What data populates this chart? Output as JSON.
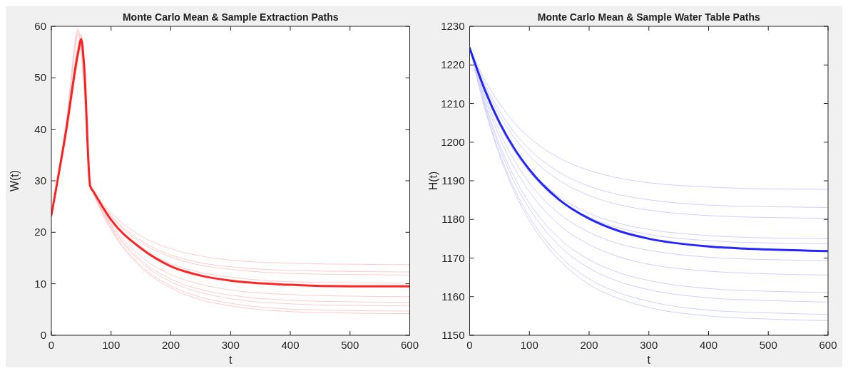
{
  "chart_data": [
    {
      "type": "line",
      "title": "Monte Carlo Mean & Sample Extraction Paths",
      "xlabel": "t",
      "ylabel": "W(t)",
      "xlim": [
        0,
        600
      ],
      "ylim": [
        0,
        60
      ],
      "xticks": [
        0,
        100,
        200,
        300,
        400,
        500,
        600
      ],
      "yticks": [
        0,
        10,
        20,
        30,
        40,
        50,
        60
      ],
      "series": [
        {
          "color": "#ffcccc",
          "x": [
            0,
            25,
            45,
            50,
            55,
            65,
            70,
            100,
            150,
            200,
            250,
            300,
            400,
            500,
            600
          ],
          "values": [
            23.3,
            40.5,
            59.5,
            56,
            50,
            29,
            28.1,
            23.8,
            19.3,
            16.8,
            15.4,
            14.6,
            14.0,
            13.8,
            13.7
          ]
        },
        {
          "color": "#ffcccc",
          "x": [
            0,
            25,
            45,
            50,
            55,
            65,
            70,
            100,
            150,
            200,
            250,
            300,
            400,
            500,
            600
          ],
          "values": [
            23.3,
            39.5,
            56,
            57,
            52,
            29,
            28.0,
            23.3,
            18.4,
            15.6,
            14.1,
            13.3,
            12.6,
            12.4,
            12.3
          ]
        },
        {
          "color": "#ffcccc",
          "x": [
            0,
            25,
            45,
            50,
            55,
            65,
            70,
            100,
            150,
            200,
            250,
            300,
            400,
            500,
            600
          ],
          "values": [
            23.3,
            41,
            58.5,
            55,
            48,
            29,
            28.0,
            23.1,
            18.0,
            15.2,
            13.6,
            12.8,
            12.0,
            11.8,
            11.7
          ]
        },
        {
          "color": "#ffcccc",
          "x": [
            0,
            25,
            45,
            50,
            55,
            65,
            70,
            100,
            150,
            200,
            250,
            300,
            400,
            500,
            600
          ],
          "values": [
            23.3,
            40,
            55,
            58,
            53,
            29,
            27.9,
            22.6,
            17.0,
            13.9,
            12.2,
            11.3,
            10.4,
            10.2,
            10.1
          ]
        },
        {
          "color": "#ffcccc",
          "x": [
            0,
            25,
            45,
            50,
            55,
            65,
            70,
            100,
            150,
            200,
            250,
            300,
            400,
            500,
            600
          ],
          "values": [
            23.3,
            39,
            54,
            57.5,
            54,
            29,
            27.8,
            21.7,
            15.3,
            11.8,
            9.9,
            8.8,
            7.9,
            7.6,
            7.5
          ]
        },
        {
          "color": "#ffcccc",
          "x": [
            0,
            25,
            45,
            50,
            55,
            65,
            70,
            100,
            150,
            200,
            250,
            300,
            400,
            500,
            600
          ],
          "values": [
            23.3,
            40.5,
            58,
            57,
            50,
            29,
            27.7,
            21.3,
            14.6,
            10.9,
            8.9,
            7.8,
            6.8,
            6.5,
            6.4
          ]
        },
        {
          "color": "#ffcccc",
          "x": [
            0,
            25,
            45,
            50,
            55,
            65,
            70,
            100,
            150,
            200,
            250,
            300,
            400,
            500,
            600
          ],
          "values": [
            23.3,
            39.5,
            55.5,
            56.5,
            51,
            29,
            27.6,
            21.1,
            14.2,
            10.4,
            8.3,
            7.1,
            6.1,
            5.8,
            5.7
          ]
        },
        {
          "color": "#ffcccc",
          "x": [
            0,
            25,
            45,
            50,
            55,
            65,
            70,
            100,
            150,
            200,
            250,
            300,
            400,
            500,
            600
          ],
          "values": [
            23.3,
            41.5,
            59,
            55.5,
            47,
            29,
            27.6,
            20.7,
            13.5,
            9.6,
            7.4,
            6.2,
            5.1,
            4.8,
            4.7
          ]
        },
        {
          "color": "#ffcccc",
          "x": [
            0,
            25,
            45,
            50,
            55,
            65,
            70,
            100,
            150,
            200,
            250,
            300,
            400,
            500,
            600
          ],
          "values": [
            23.3,
            40,
            56.5,
            58.5,
            52,
            29,
            27.6,
            20.5,
            13.2,
            9.2,
            6.9,
            5.7,
            4.6,
            4.3,
            4.2
          ]
        },
        {
          "color": "#ff0000",
          "x": [
            0,
            25,
            45,
            50,
            55,
            65,
            70,
            100,
            150,
            200,
            250,
            300,
            400,
            500,
            600
          ],
          "values": [
            23.3,
            40,
            55,
            57.5,
            52,
            29,
            28,
            22.4,
            16.9,
            13.4,
            11.6,
            10.6,
            9.8,
            9.5,
            9.5
          ]
        }
      ]
    },
    {
      "type": "line",
      "title": "Monte Carlo Mean & Sample Water Table Paths",
      "xlabel": "t",
      "ylabel": "H(t)",
      "xlim": [
        0,
        600
      ],
      "ylim": [
        1150,
        1230
      ],
      "xticks": [
        0,
        100,
        200,
        300,
        400,
        500,
        600
      ],
      "yticks": [
        1150,
        1160,
        1170,
        1180,
        1190,
        1200,
        1210,
        1220,
        1230
      ],
      "series": [
        {
          "color": "#d0d0ff",
          "x": [
            0,
            25,
            50,
            75,
            100,
            150,
            200,
            250,
            300,
            400,
            500,
            600
          ],
          "values": [
            1224.4,
            1216.3,
            1210.0,
            1205.0,
            1201.2,
            1195.9,
            1192.7,
            1190.7,
            1189.5,
            1188.4,
            1187.9,
            1187.8
          ]
        },
        {
          "color": "#d0d0ff",
          "x": [
            0,
            25,
            50,
            75,
            100,
            150,
            200,
            250,
            300,
            400,
            500,
            600
          ],
          "values": [
            1224.4,
            1215.3,
            1208.1,
            1202.5,
            1198.2,
            1192.2,
            1188.6,
            1186.4,
            1185.1,
            1183.7,
            1183.3,
            1183.1
          ]
        },
        {
          "color": "#d0d0ff",
          "x": [
            0,
            25,
            50,
            75,
            100,
            150,
            200,
            250,
            300,
            400,
            500,
            600
          ],
          "values": [
            1224.4,
            1214.7,
            1207.0,
            1201.1,
            1196.5,
            1190.1,
            1186.2,
            1183.8,
            1182.4,
            1181.0,
            1180.5,
            1180.3
          ]
        },
        {
          "color": "#d0d0ff",
          "x": [
            0,
            25,
            50,
            75,
            100,
            150,
            200,
            250,
            300,
            400,
            500,
            600
          ],
          "values": [
            1224.4,
            1213.5,
            1205.0,
            1198.3,
            1193.1,
            1185.9,
            1181.6,
            1179.0,
            1177.4,
            1175.8,
            1175.2,
            1175.0
          ]
        },
        {
          "color": "#d0d0ff",
          "x": [
            0,
            25,
            50,
            75,
            100,
            150,
            200,
            250,
            300,
            400,
            500,
            600
          ],
          "values": [
            1224.4,
            1213.2,
            1204.4,
            1197.6,
            1192.3,
            1184.9,
            1180.5,
            1177.8,
            1176.1,
            1174.5,
            1173.9,
            1173.7
          ]
        },
        {
          "color": "#d0d0ff",
          "x": [
            0,
            25,
            50,
            75,
            100,
            150,
            200,
            250,
            300,
            400,
            500,
            600
          ],
          "values": [
            1224.4,
            1212.3,
            1202.7,
            1195.3,
            1189.5,
            1181.5,
            1176.7,
            1173.7,
            1172.0,
            1170.2,
            1169.6,
            1169.3
          ]
        },
        {
          "color": "#d0d0ff",
          "x": [
            0,
            25,
            50,
            75,
            100,
            150,
            200,
            250,
            300,
            400,
            500,
            600
          ],
          "values": [
            1224.4,
            1211.4,
            1201.3,
            1193.3,
            1187.2,
            1178.6,
            1173.5,
            1170.3,
            1168.4,
            1166.6,
            1165.9,
            1165.6
          ]
        },
        {
          "color": "#d0d0ff",
          "x": [
            0,
            25,
            50,
            75,
            100,
            150,
            200,
            250,
            300,
            400,
            500,
            600
          ],
          "values": [
            1224.4,
            1210.5,
            1199.5,
            1190.9,
            1184.3,
            1175.1,
            1169.6,
            1166.2,
            1164.2,
            1162.1,
            1161.4,
            1161.1
          ]
        },
        {
          "color": "#d0d0ff",
          "x": [
            0,
            25,
            50,
            75,
            100,
            150,
            200,
            250,
            300,
            400,
            500,
            600
          ],
          "values": [
            1224.4,
            1209.9,
            1198.5,
            1189.6,
            1182.8,
            1173.2,
            1167.4,
            1163.9,
            1161.8,
            1159.7,
            1159.0,
            1158.6
          ]
        },
        {
          "color": "#d0d0ff",
          "x": [
            0,
            25,
            50,
            75,
            100,
            150,
            200,
            250,
            300,
            400,
            500,
            600
          ],
          "values": [
            1224.4,
            1209.2,
            1197.2,
            1187.9,
            1180.7,
            1170.7,
            1164.6,
            1161.0,
            1158.8,
            1156.5,
            1155.8,
            1155.4
          ]
        },
        {
          "color": "#d0d0ff",
          "x": [
            0,
            25,
            50,
            75,
            100,
            150,
            200,
            250,
            300,
            400,
            500,
            600
          ],
          "values": [
            1224.4,
            1208.9,
            1196.6,
            1187.1,
            1179.7,
            1169.5,
            1163.2,
            1159.5,
            1157.2,
            1155.0,
            1154.2,
            1153.8
          ]
        },
        {
          "color": "#0000ff",
          "x": [
            0,
            25,
            50,
            75,
            100,
            150,
            200,
            250,
            300,
            400,
            500,
            600
          ],
          "values": [
            1224.4,
            1213.7,
            1205.1,
            1198.3,
            1192.9,
            1185.1,
            1180.2,
            1177.0,
            1175.0,
            1173.0,
            1172.2,
            1171.8
          ]
        }
      ]
    }
  ]
}
